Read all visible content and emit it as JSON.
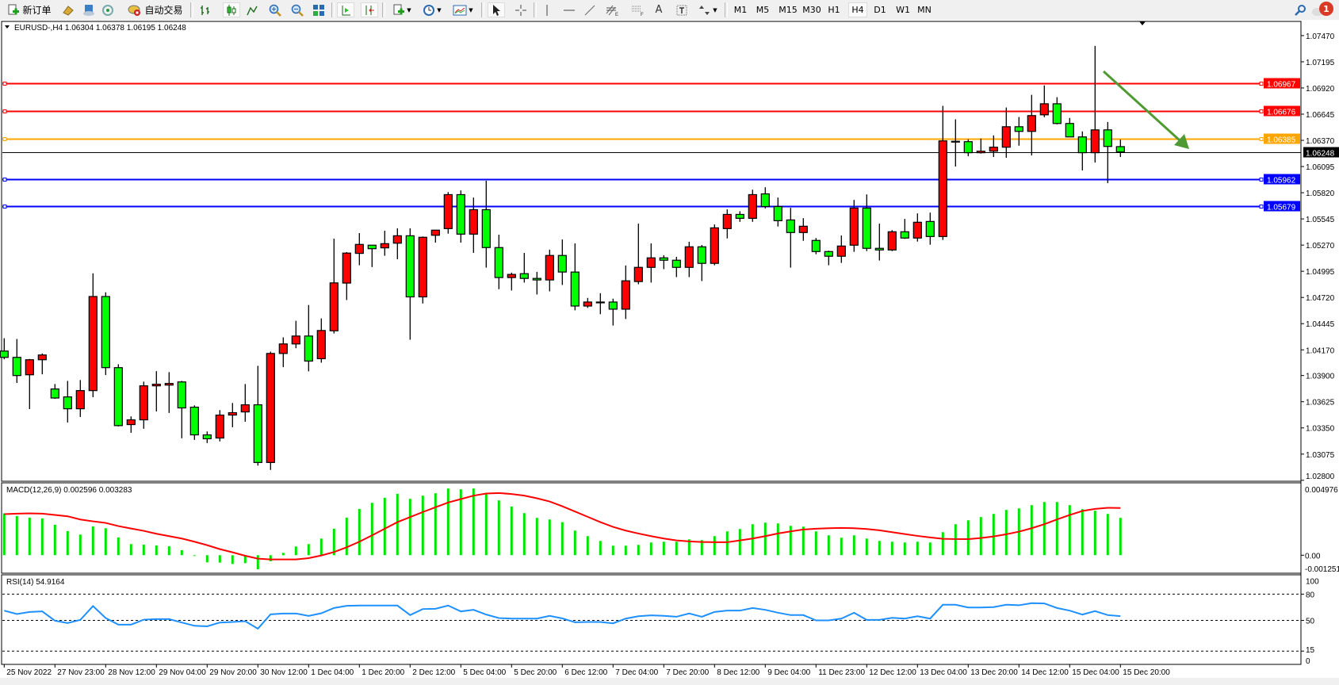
{
  "toolbar": {
    "new_order": {
      "label": "新订单",
      "icon": "new-order-icon"
    },
    "auto_trading": {
      "label": "自动交易",
      "icon": "auto-trading-icon"
    },
    "timeframes": [
      "M1",
      "M5",
      "M15",
      "M30",
      "H1",
      "H4",
      "D1",
      "W1",
      "MN"
    ],
    "active_timeframe": "H4",
    "text_tool_label": "A",
    "notification_count": "1"
  },
  "chart": {
    "header": "EURUSD-,H4  1.06304 1.06378 1.06195 1.06248",
    "current_price_label": "1.06248",
    "colors": {
      "bull": "#ff0000",
      "bear": "#00ff00",
      "outline": "#000000",
      "arrow": "#4f9a33"
    }
  },
  "chart_data": [
    {
      "type": "candlestick",
      "symbol": "EURUSD-",
      "timeframe": "H4",
      "ylim": [
        1.0279,
        1.07619
      ],
      "price_ticks": [
        "1.07470",
        "1.07195",
        "1.06920",
        "1.06645",
        "1.06370",
        "1.06095",
        "1.05820",
        "1.05545",
        "1.05270",
        "1.04995",
        "1.04720",
        "1.04445",
        "1.04170",
        "1.03900",
        "1.03625",
        "1.03350",
        "1.03075",
        "1.02800"
      ],
      "time_labels": [
        "25 Nov 2022",
        "27 Nov 23:00",
        "28 Nov 12:00",
        "29 Nov 04:00",
        "29 Nov 20:00",
        "30 Nov 12:00",
        "1 Dec 04:00",
        "1 Dec 20:00",
        "2 Dec 12:00",
        "5 Dec 04:00",
        "5 Dec 20:00",
        "6 Dec 12:00",
        "7 Dec 04:00",
        "7 Dec 20:00",
        "8 Dec 12:00",
        "9 Dec 04:00",
        "11 Dec 23:00",
        "12 Dec 12:00",
        "13 Dec 04:00",
        "13 Dec 20:00",
        "14 Dec 12:00",
        "15 Dec 04:00",
        "15 Dec 20:00"
      ],
      "ohlc": [
        [
          1.04157,
          1.04292,
          1.04071,
          1.04091
        ],
        [
          1.04091,
          1.04284,
          1.03822,
          1.039
        ],
        [
          1.03908,
          1.04074,
          1.03548,
          1.04066
        ],
        [
          1.04066,
          1.04132,
          1.03913,
          1.04116
        ],
        [
          1.03759,
          1.03811,
          1.03656,
          1.03664
        ],
        [
          1.03676,
          1.03844,
          1.03407,
          1.03551
        ],
        [
          1.03551,
          1.03853,
          1.03465,
          1.03742
        ],
        [
          1.03742,
          1.04973,
          1.03673,
          1.0473
        ],
        [
          1.0473,
          1.04774,
          1.03905,
          1.03983
        ],
        [
          1.03983,
          1.04019,
          1.03366,
          1.03374
        ],
        [
          1.03385,
          1.03471,
          1.03299,
          1.03435
        ],
        [
          1.03435,
          1.03836,
          1.03341,
          1.03792
        ],
        [
          1.03792,
          1.03946,
          1.03523,
          1.03809
        ],
        [
          1.038,
          1.03936,
          1.03507,
          1.03817
        ],
        [
          1.03833,
          1.03844,
          1.03241,
          1.0356
        ],
        [
          1.03568,
          1.03587,
          1.03224,
          1.03277
        ],
        [
          1.03277,
          1.03313,
          1.03191,
          1.03236
        ],
        [
          1.03244,
          1.03537,
          1.03208,
          1.03485
        ],
        [
          1.03485,
          1.03612,
          1.03357,
          1.0351
        ],
        [
          1.03518,
          1.03811,
          1.03415,
          1.03593
        ],
        [
          1.03593,
          1.04002,
          1.02954,
          1.02987
        ],
        [
          1.02987,
          1.04151,
          1.02909,
          1.04132
        ],
        [
          1.04132,
          1.04301,
          1.03988,
          1.04232
        ],
        [
          1.04232,
          1.04475,
          1.04187,
          1.04315
        ],
        [
          1.04315,
          1.04641,
          1.03944,
          1.04052
        ],
        [
          1.04077,
          1.045,
          1.04035,
          1.04373
        ],
        [
          1.0437,
          1.05338,
          1.04342,
          1.04873
        ],
        [
          1.04871,
          1.05197,
          1.04693,
          1.05186
        ],
        [
          1.05183,
          1.05396,
          1.05058,
          1.05277
        ],
        [
          1.05269,
          1.05271,
          1.05039,
          1.05232
        ],
        [
          1.05241,
          1.05421,
          1.05158,
          1.05285
        ],
        [
          1.0529,
          1.05446,
          1.05122,
          1.05368
        ],
        [
          1.05368,
          1.05446,
          1.04276,
          1.04726
        ],
        [
          1.04726,
          1.0536,
          1.04657,
          1.05352
        ],
        [
          1.05373,
          1.05427,
          1.05296,
          1.05427
        ],
        [
          1.05443,
          1.05827,
          1.0539,
          1.058
        ],
        [
          1.058,
          1.05844,
          1.05296,
          1.05385
        ],
        [
          1.05385,
          1.05769,
          1.05188,
          1.05642
        ],
        [
          1.05642,
          1.05946,
          1.05033,
          1.05244
        ],
        [
          1.05244,
          1.05379,
          1.04807,
          1.04929
        ],
        [
          1.04929,
          1.04981,
          1.04793,
          1.04962
        ],
        [
          1.0497,
          1.05188,
          1.04876,
          1.0492
        ],
        [
          1.0492,
          1.04989,
          1.04751,
          1.04904
        ],
        [
          1.04904,
          1.05222,
          1.04784,
          1.05161
        ],
        [
          1.05161,
          1.05329,
          1.04851,
          1.04987
        ],
        [
          1.04987,
          1.05288,
          1.04585,
          1.0463
        ],
        [
          1.0463,
          1.04715,
          1.0461,
          1.04672
        ],
        [
          1.04672,
          1.04765,
          1.04544,
          1.0467
        ],
        [
          1.04672,
          1.04707,
          1.04425,
          1.04597
        ],
        [
          1.04597,
          1.05056,
          1.04494,
          1.04895
        ],
        [
          1.04887,
          1.05495,
          1.04859,
          1.05036
        ],
        [
          1.05036,
          1.05288,
          1.04876,
          1.05136
        ],
        [
          1.05136,
          1.05164,
          1.05017,
          1.05111
        ],
        [
          1.05111,
          1.05147,
          1.04934,
          1.05036
        ],
        [
          1.05036,
          1.05305,
          1.04934,
          1.05252
        ],
        [
          1.05252,
          1.05271,
          1.04892,
          1.05078
        ],
        [
          1.05078,
          1.05487,
          1.05058,
          1.05451
        ],
        [
          1.05443,
          1.05645,
          1.0534,
          1.05592
        ],
        [
          1.05592,
          1.05626,
          1.05514,
          1.05551
        ],
        [
          1.05551,
          1.05852,
          1.05514,
          1.058
        ],
        [
          1.05808,
          1.05877,
          1.05655,
          1.05675
        ],
        [
          1.05675,
          1.05769,
          1.05465,
          1.05526
        ],
        [
          1.05534,
          1.05661,
          1.05033,
          1.05402
        ],
        [
          1.05402,
          1.05553,
          1.05315,
          1.05468
        ],
        [
          1.05319,
          1.05344,
          1.05174,
          1.05202
        ],
        [
          1.05202,
          1.05211,
          1.05058,
          1.05153
        ],
        [
          1.05153,
          1.05371,
          1.05083,
          1.0526
        ],
        [
          1.05269,
          1.05744,
          1.05199,
          1.05659
        ],
        [
          1.05659,
          1.05802,
          1.05207,
          1.05236
        ],
        [
          1.05236,
          1.05495,
          1.05108,
          1.05219
        ],
        [
          1.05219,
          1.05427,
          1.05207,
          1.0541
        ],
        [
          1.0541,
          1.05545,
          1.05335,
          1.05344
        ],
        [
          1.05344,
          1.05603,
          1.05307,
          1.0551
        ],
        [
          1.05518,
          1.05611,
          1.05274,
          1.0536
        ],
        [
          1.0536,
          1.06732,
          1.05324,
          1.06364
        ],
        [
          1.06358,
          1.06591,
          1.06095,
          1.0636
        ],
        [
          1.06356,
          1.06381,
          1.06203,
          1.0624
        ],
        [
          1.0624,
          1.06389,
          1.06231,
          1.06256
        ],
        [
          1.06256,
          1.06422,
          1.06195,
          1.06298
        ],
        [
          1.06298,
          1.06715,
          1.06187,
          1.06513
        ],
        [
          1.06513,
          1.06615,
          1.06314,
          1.06464
        ],
        [
          1.06464,
          1.06848,
          1.06211,
          1.0663
        ],
        [
          1.06638,
          1.06947,
          1.06613,
          1.06754
        ],
        [
          1.06754,
          1.06823,
          1.06538,
          1.06547
        ],
        [
          1.06547,
          1.06605,
          1.06406,
          1.06406
        ],
        [
          1.06406,
          1.06464,
          1.06054,
          1.0624
        ],
        [
          1.0624,
          1.07362,
          1.06137,
          1.0648
        ],
        [
          1.0648,
          1.06563,
          1.05921,
          1.06306
        ],
        [
          1.06304,
          1.06378,
          1.06195,
          1.06248
        ]
      ],
      "levels": [
        {
          "price": 1.06967,
          "label": "1.06967",
          "color": "#ff0000"
        },
        {
          "price": 1.06676,
          "label": "1.06676",
          "color": "#ff0000"
        },
        {
          "price": 1.06385,
          "label": "1.06385",
          "color": "#ffa500"
        },
        {
          "price": 1.05962,
          "label": "1.05962",
          "color": "#0000ff"
        },
        {
          "price": 1.05679,
          "label": "1.05679",
          "color": "#0000ff"
        }
      ],
      "current_price": 1.06248,
      "annotation": {
        "type": "arrow",
        "direction": "down-right",
        "color": "#4f9a33"
      }
    },
    {
      "type": "bar+line",
      "title": "MACD(12,26,9) 0.002596 0.003283",
      "ylim": [
        -0.001251,
        0.004976
      ],
      "ticks": [
        "0.004976",
        "0.00",
        "-0.001251"
      ],
      "histogram_color": "#00e600",
      "signal_color": "#ff0000",
      "macd": [
        0.002907,
        0.002723,
        0.002613,
        0.002558,
        0.002116,
        0.001674,
        0.001435,
        0.002006,
        0.001877,
        0.001233,
        0.000773,
        0.000736,
        0.000681,
        0.000626,
        0.00035,
        -3.7e-05,
        -0.000497,
        -0.000515,
        -0.000607,
        -0.000552,
        -0.000975,
        -0.000423,
        0.000166,
        0.000607,
        0.000773,
        0.001159,
        0.00184,
        0.002613,
        0.00322,
        0.003643,
        0.003993,
        0.004269,
        0.003919,
        0.00414,
        0.004306,
        0.004637,
        0.004582,
        0.004637,
        0.004324,
        0.003809,
        0.003386,
        0.002926,
        0.002594,
        0.002484,
        0.0023,
        0.001711,
        0.001325,
        0.000994,
        0.000662,
        0.000662,
        0.000718,
        0.000883,
        0.000938,
        0.000938,
        0.001104,
        0.001049,
        0.001325,
        0.001656,
        0.001822,
        0.002153,
        0.002263,
        0.002208,
        0.002042,
        0.001987,
        0.001656,
        0.00138,
        0.001214,
        0.00138,
        0.001159,
        0.000994,
        0.000938,
        0.000883,
        0.000938,
        0.000883,
        0.001601,
        0.002153,
        0.002429,
        0.00265,
        0.00287,
        0.003146,
        0.003257,
        0.003478,
        0.003698,
        0.003698,
        0.003478,
        0.003202,
        0.003091,
        0.00287,
        0.002596
      ],
      "signal": [
        0.002852,
        0.002889,
        0.002907,
        0.002889,
        0.002797,
        0.002705,
        0.002484,
        0.002355,
        0.002245,
        0.002024,
        0.001858,
        0.001693,
        0.00149,
        0.001325,
        0.001159,
        0.000938,
        0.000699,
        0.000423,
        0.000202,
        -3.7e-05,
        -0.000239,
        -0.000294,
        -0.000294,
        -0.000294,
        -0.000202,
        -1.8e-05,
        0.000221,
        0.000552,
        0.000938,
        0.00138,
        0.00184,
        0.0023,
        0.00265,
        0.002999,
        0.00333,
        0.003662,
        0.003901,
        0.00414,
        0.004287,
        0.004324,
        0.00425,
        0.00414,
        0.003956,
        0.003735,
        0.003404,
        0.003036,
        0.002668,
        0.0023,
        0.001969,
        0.001711,
        0.001509,
        0.001325,
        0.001159,
        0.00103,
        0.000957,
        0.00092,
        0.000902,
        0.000902,
        0.00103,
        0.001159,
        0.001325,
        0.001509,
        0.001656,
        0.001785,
        0.00184,
        0.001877,
        0.001895,
        0.001877,
        0.001822,
        0.00173,
        0.001601,
        0.001472,
        0.001343,
        0.001233,
        0.001141,
        0.001122,
        0.001122,
        0.001196,
        0.001306,
        0.001454,
        0.001638,
        0.001877,
        0.002153,
        0.002484,
        0.002797,
        0.003073,
        0.00322,
        0.003294,
        0.003283
      ]
    },
    {
      "type": "line",
      "title": "RSI(14) 54.9164",
      "ylim": [
        0,
        100
      ],
      "ticks": [
        "100",
        "80",
        "50",
        "15",
        "0"
      ],
      "levels": [
        80,
        50,
        15
      ],
      "color": "#1e90ff",
      "values": [
        61.2,
        57.3,
        59.7,
        60.3,
        49.7,
        47,
        50.6,
        66.4,
        52.7,
        45.2,
        45.2,
        50.9,
        51.5,
        51.5,
        47.6,
        43.9,
        43.3,
        47.6,
        48.2,
        49.1,
        40.6,
        57,
        57.9,
        57.9,
        55.2,
        58.2,
        64.2,
        66.7,
        67,
        67,
        67,
        67,
        56.1,
        63,
        63.3,
        67,
        60.3,
        62.1,
        56.7,
        52.7,
        52.1,
        52.1,
        52.1,
        55.2,
        52.3,
        47.9,
        48.2,
        48.2,
        46.7,
        52.1,
        54.8,
        55.8,
        55.2,
        54.2,
        57.9,
        54.2,
        59.7,
        61.2,
        61.2,
        64.2,
        62.1,
        58.8,
        56.1,
        56.1,
        50,
        50,
        52.1,
        58.8,
        50.6,
        50.6,
        53,
        52.1,
        54.8,
        52.1,
        67.9,
        67.9,
        64.8,
        64.8,
        65.2,
        67.9,
        67.3,
        69.7,
        69.4,
        64.2,
        61.2,
        56.7,
        60.6,
        56.1,
        54.9164
      ]
    }
  ]
}
